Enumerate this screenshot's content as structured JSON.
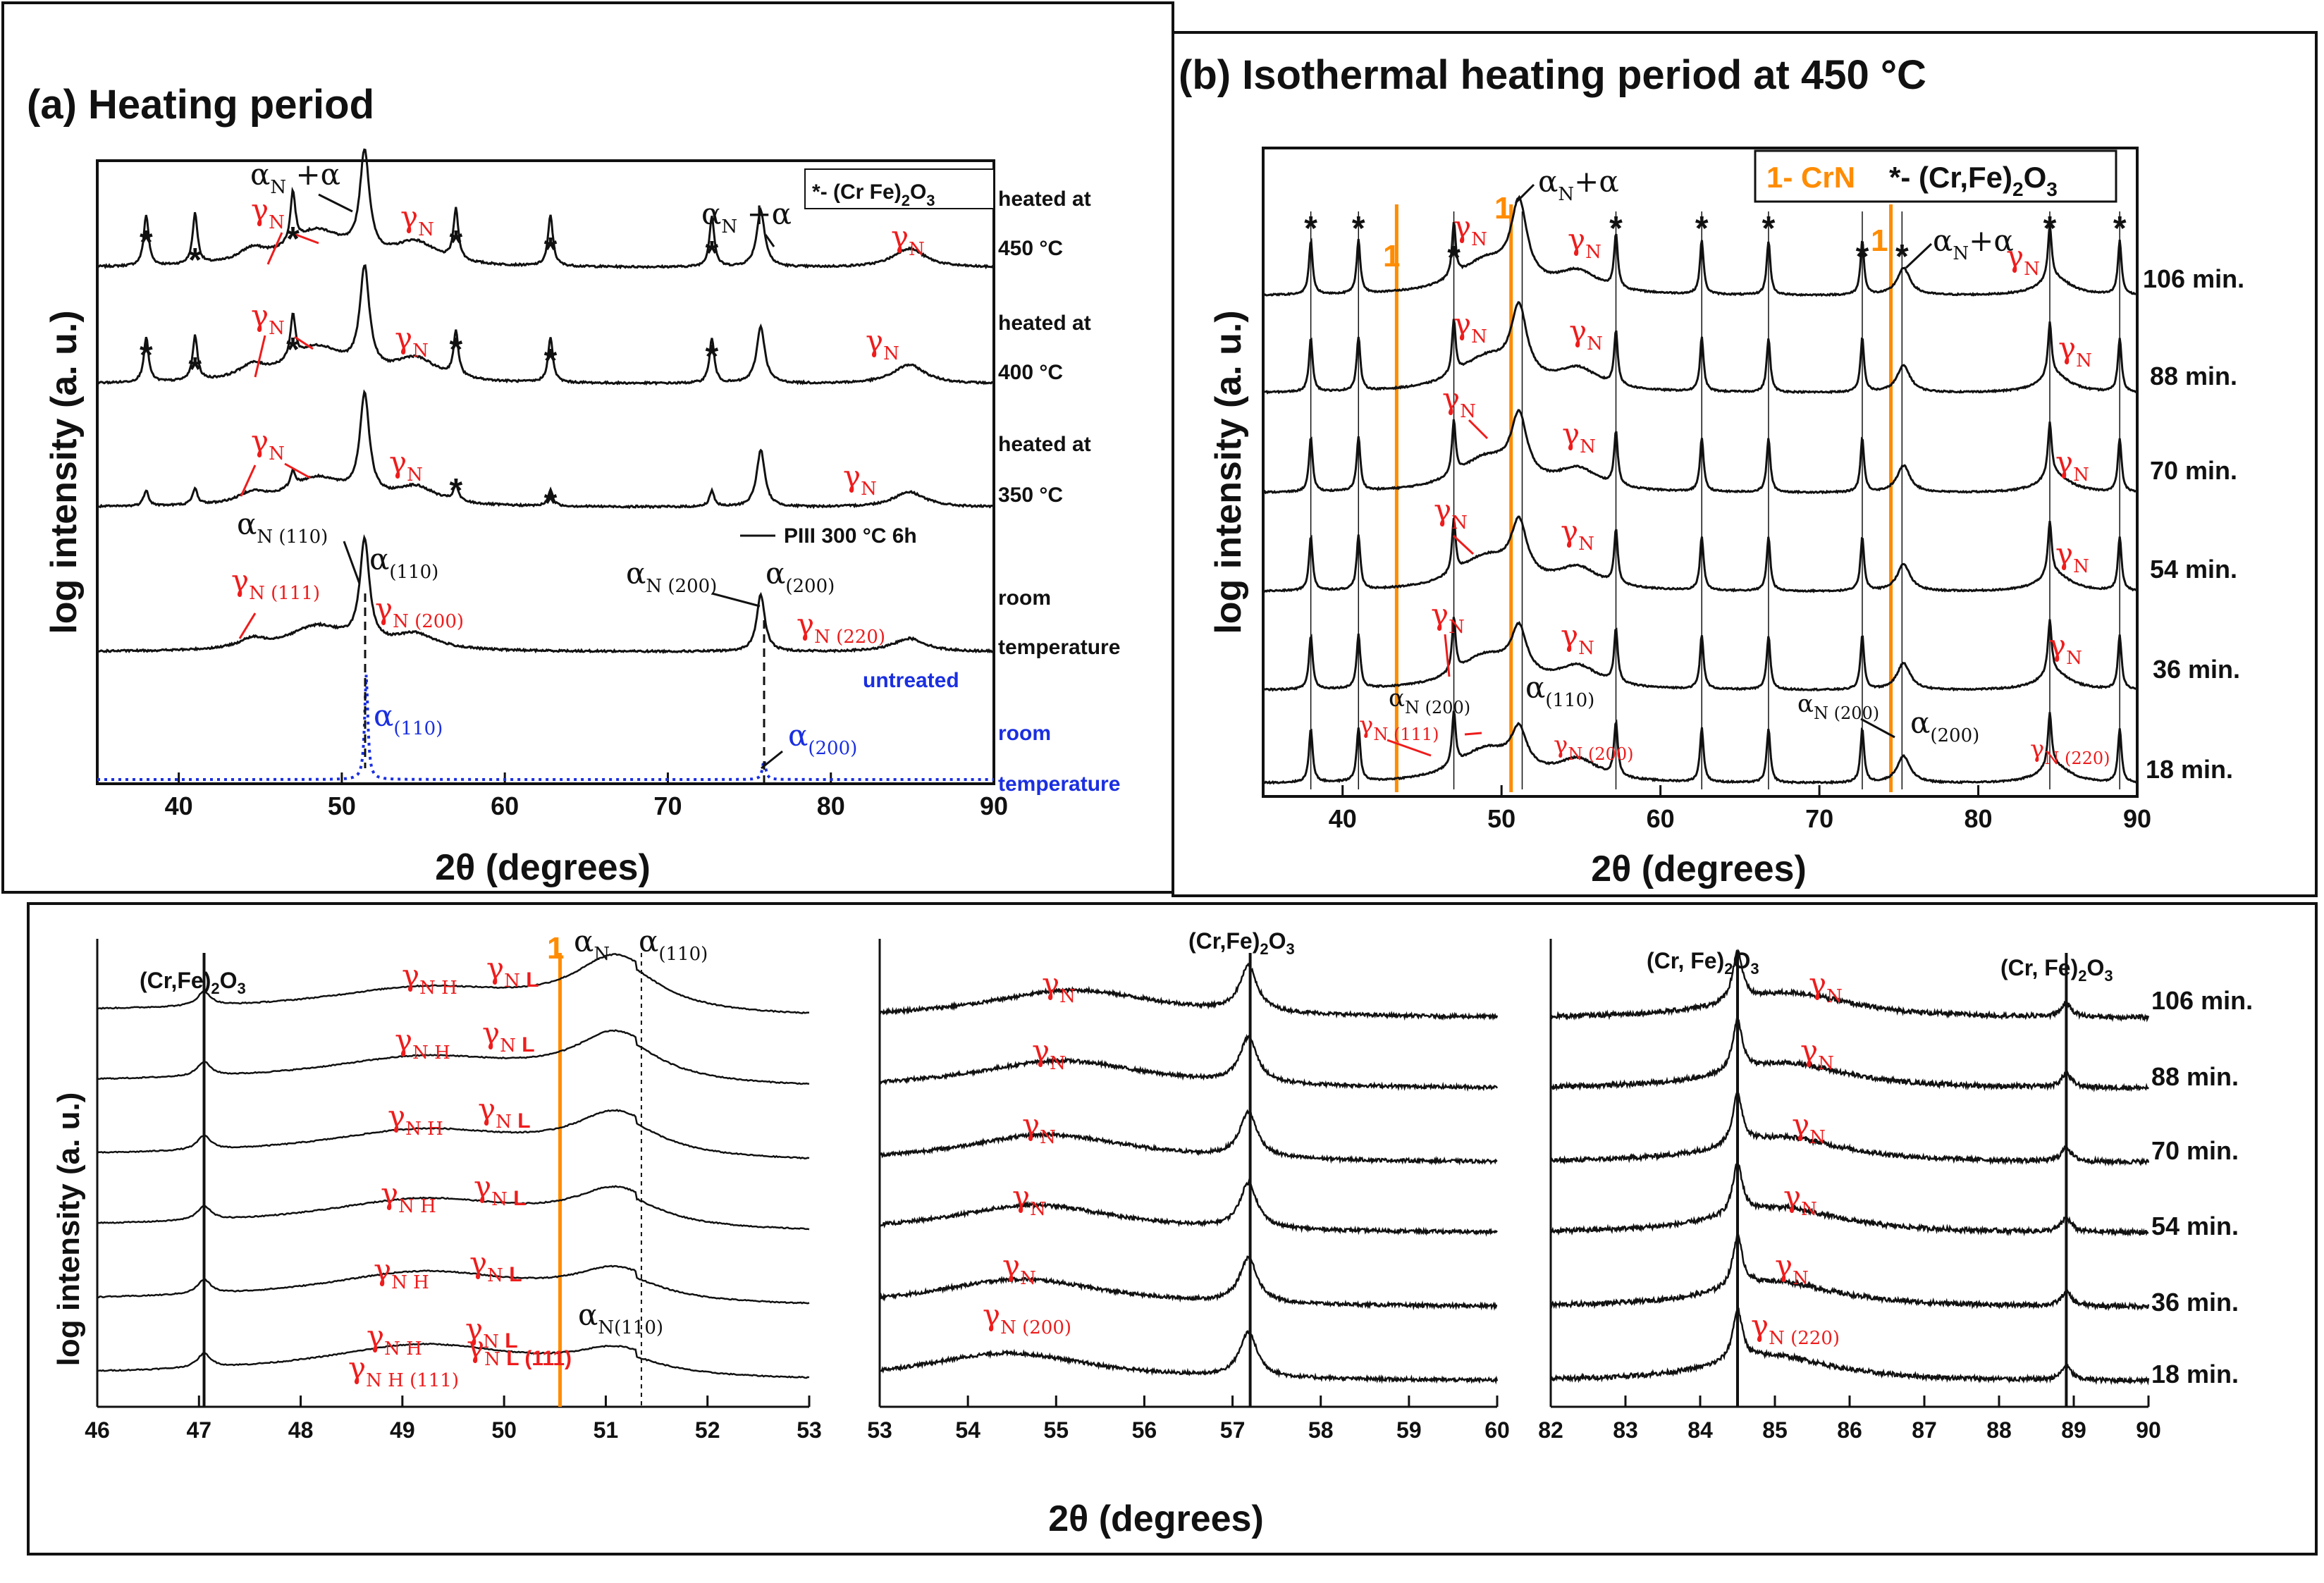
{
  "chart_data": [
    {
      "id": "a",
      "type": "line",
      "title": "(a) Heating period",
      "xlabel": "2θ (degrees)",
      "ylabel": "log intensity (a. u.)",
      "xlim": [
        35,
        90
      ],
      "xticks": [
        "40",
        "50",
        "60",
        "70",
        "80",
        "90"
      ],
      "legend": {
        "star": "*",
        "text": "- (Cr Fe)",
        "sub": "2",
        "tail": "O",
        "sub2": "3"
      },
      "pIII_label": "PIII 300 °C 6h",
      "series": [
        {
          "name": "heated at 450 °C",
          "label1": "heated at",
          "label2": "450 °C"
        },
        {
          "name": "heated at 400 °C",
          "label1": "heated at",
          "label2": "400 °C"
        },
        {
          "name": "heated at 350 °C",
          "label1": "heated at",
          "label2": "350 °C"
        },
        {
          "name": "room temperature",
          "label1": "room",
          "label2": "temperature"
        },
        {
          "name": "untreated room temperature",
          "label1": "untreated",
          "label2": "room",
          "label3": "temperature"
        }
      ],
      "peaks": {
        "alpha_110": 51.5,
        "alpha_200": 75.9,
        "gammaN_111": 48.5,
        "gammaN_200": 54.5,
        "gammaN_220": 84.8
      },
      "oxide_peaks": [
        38.0,
        41.0,
        47.0,
        57.0,
        62.8,
        72.7
      ]
    },
    {
      "id": "b",
      "type": "line",
      "title": "(b) Isothermal heating period at 450 °C",
      "xlabel": "2θ (degrees)",
      "ylabel": "log intensity (a. u.)",
      "xlim": [
        35,
        90
      ],
      "xticks": [
        "40",
        "50",
        "60",
        "70",
        "80",
        "90"
      ],
      "legend": {
        "crn": "1- CrN",
        "oxide": "*- (Cr,Fe)",
        "sub": "2",
        "tail": "O",
        "sub2": "3"
      },
      "series": [
        {
          "name": "106 min."
        },
        {
          "name": "88 min."
        },
        {
          "name": "70 min."
        },
        {
          "name": "54 min."
        },
        {
          "name": "36 min."
        },
        {
          "name": "18 min."
        }
      ],
      "oxide_lines": [
        38.0,
        41.0,
        47.0,
        51.3,
        57.2,
        62.6,
        66.8,
        72.7,
        75.2,
        84.5,
        88.9
      ],
      "crn_lines": [
        43.4,
        50.6,
        74.5
      ]
    },
    {
      "id": "c1",
      "type": "line",
      "xlim": [
        46,
        53
      ],
      "xticks": [
        "46",
        "47",
        "48",
        "49",
        "50",
        "51",
        "52",
        "53"
      ],
      "ylabel": "log intensity (a. u.)",
      "oxide_label": "(Cr,Fe)2O3",
      "markers": {
        "oxide": 47.05,
        "crn": 50.55,
        "alpha": 51.35
      }
    },
    {
      "id": "c2",
      "type": "line",
      "xlim": [
        53,
        60
      ],
      "xticks": [
        "53",
        "54",
        "55",
        "56",
        "57",
        "58",
        "59",
        "60"
      ],
      "xlabel": "2θ (degrees)",
      "oxide_label": "(Cr,Fe)2O3",
      "markers": {
        "oxide": 57.2
      }
    },
    {
      "id": "c3",
      "type": "line",
      "xlim": [
        82,
        90
      ],
      "xticks": [
        "82",
        "83",
        "84",
        "85",
        "86",
        "87",
        "88",
        "89",
        "90"
      ],
      "oxide_label": "(Cr, Fe)2O3",
      "markers": {
        "oxide1": 84.5,
        "oxide2": 88.9
      },
      "series_labels": [
        "106 min.",
        "88 min.",
        "70 min.",
        "54 min.",
        "36 min.",
        "18 min."
      ]
    }
  ],
  "colors": {
    "black": "#111111",
    "red": "#ee1c1c",
    "blue": "#1a2fe0",
    "orange": "#ff8c00"
  }
}
